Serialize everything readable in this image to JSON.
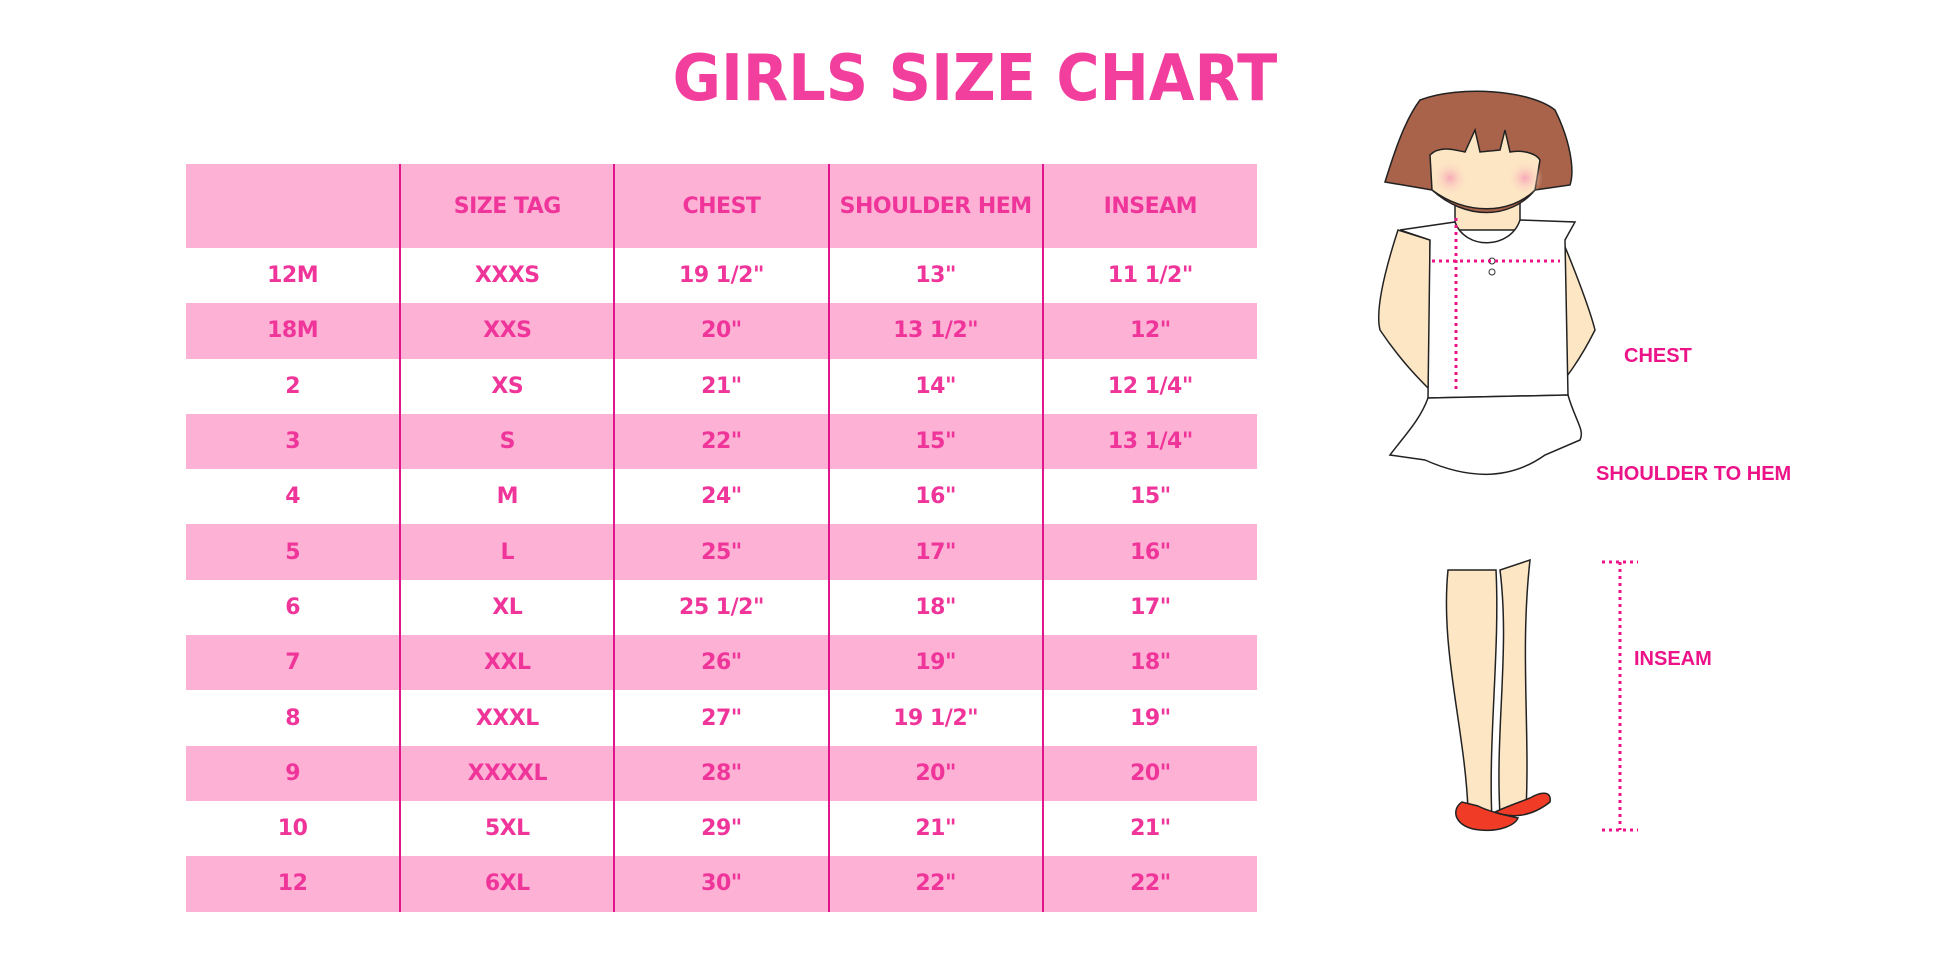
{
  "title": "GIRLS SIZE CHART",
  "table": {
    "headers": [
      "",
      "SIZE TAG",
      "CHEST",
      "SHOULDER HEM",
      "INSEAM"
    ],
    "rows": [
      [
        "12M",
        "XXXS",
        "19 1/2\"",
        "13\"",
        "11 1/2\""
      ],
      [
        "18M",
        "XXS",
        "20\"",
        "13 1/2\"",
        "12\""
      ],
      [
        "2",
        "XS",
        "21\"",
        "14\"",
        "12 1/4\""
      ],
      [
        "3",
        "S",
        "22\"",
        "15\"",
        "13 1/4\""
      ],
      [
        "4",
        "M",
        "24\"",
        "16\"",
        "15\""
      ],
      [
        "5",
        "L",
        "25\"",
        "17\"",
        "16\""
      ],
      [
        "6",
        "XL",
        "25 1/2\"",
        "18\"",
        "17\""
      ],
      [
        "7",
        "XXL",
        "26\"",
        "19\"",
        "18\""
      ],
      [
        "8",
        "XXXL",
        "27\"",
        "19 1/2\"",
        "19\""
      ],
      [
        "9",
        "XXXXL",
        "28\"",
        "20\"",
        "20\""
      ],
      [
        "10",
        "5XL",
        "29\"",
        "21\"",
        "21\""
      ],
      [
        "12",
        "6XL",
        "30\"",
        "22\"",
        "22\""
      ]
    ]
  },
  "figure": {
    "labels": {
      "chest": "CHEST",
      "shoulder": "SHOULDER TO HEM",
      "inseam": "INSEAM"
    }
  },
  "colors": {
    "accent": "#f23f9e",
    "row_pink": "#fdb1d5",
    "divider": "#e2168c",
    "hair": "#a8634a",
    "skin": "#fde6c4",
    "shoes": "#f03c26"
  }
}
